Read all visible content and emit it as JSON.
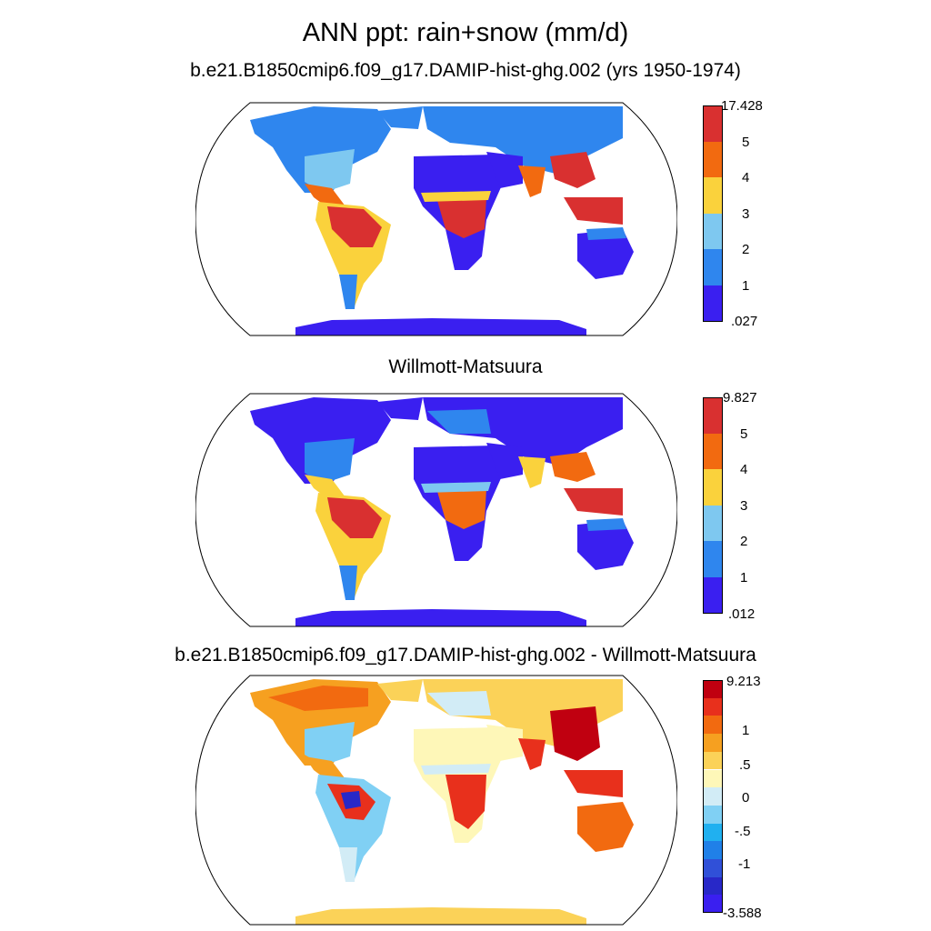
{
  "title": "ANN ppt: rain+snow (mm/d)",
  "panels": [
    {
      "title": "b.e21.B1850cmip6.f09_g17.DAMIP-hist-ghg.002 (yrs 1950-1974)",
      "colorbar": {
        "labels": [
          "17.428",
          "5",
          "4",
          "3",
          "2",
          "1",
          ".027"
        ],
        "colors": [
          "#d93030",
          "#f26a10",
          "#fad23c",
          "#7ec8f0",
          "#2f86ee",
          "#3a1ff0"
        ]
      }
    },
    {
      "title": "Willmott-Matsuura",
      "colorbar": {
        "labels": [
          "9.827",
          "5",
          "4",
          "3",
          "2",
          "1",
          ".012"
        ],
        "colors": [
          "#d93030",
          "#f26a10",
          "#fad23c",
          "#7ec8f0",
          "#2f86ee",
          "#3a1ff0"
        ]
      }
    },
    {
      "title": "b.e21.B1850cmip6.f09_g17.DAMIP-hist-ghg.002 - Willmott-Matsuura",
      "colorbar": {
        "labels": [
          "9.213",
          "1",
          ".5",
          "0",
          "-.5",
          "-1",
          "-3.588"
        ],
        "colors": [
          "#c00010",
          "#e8301c",
          "#f26a10",
          "#f6a020",
          "#fbd258",
          "#fef7b8",
          "#d2ecf6",
          "#80d0f4",
          "#20b0f0",
          "#2080e8",
          "#3050d8",
          "#2828c8",
          "#3a1ff0"
        ]
      }
    }
  ]
}
